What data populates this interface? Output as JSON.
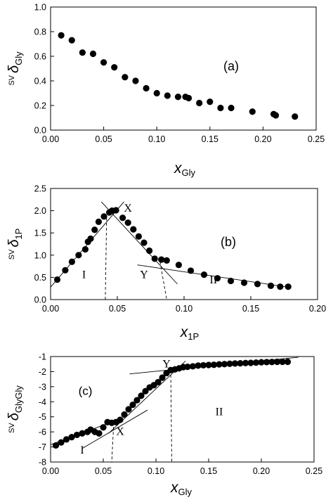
{
  "chart_data": [
    {
      "type": "scatter",
      "panel_label": "(a)",
      "ylabel": {
        "prefix": "SV",
        "symbol": "δ",
        "sub": "Gly"
      },
      "xlabel": {
        "symbol": "x",
        "sub": "Gly"
      },
      "xlim": [
        0,
        0.25
      ],
      "ylim": [
        0,
        1.0
      ],
      "xticks": [
        0.0,
        0.05,
        0.1,
        0.15,
        0.2,
        0.25
      ],
      "xtick_labels": [
        "0.00",
        "0.05",
        "0.10",
        "0.15",
        "0.20",
        "0.25"
      ],
      "yticks": [
        0,
        0.2,
        0.4,
        0.6,
        0.8,
        1.0
      ],
      "ytick_labels": [
        "0.0",
        "0.2",
        "0.4",
        "0.6",
        "0.8",
        "1.0"
      ],
      "grid": false,
      "points": [
        [
          0.01,
          0.77
        ],
        [
          0.02,
          0.73
        ],
        [
          0.03,
          0.63
        ],
        [
          0.04,
          0.62
        ],
        [
          0.05,
          0.55
        ],
        [
          0.06,
          0.51
        ],
        [
          0.07,
          0.43
        ],
        [
          0.08,
          0.4
        ],
        [
          0.09,
          0.34
        ],
        [
          0.1,
          0.3
        ],
        [
          0.11,
          0.28
        ],
        [
          0.12,
          0.27
        ],
        [
          0.127,
          0.27
        ],
        [
          0.13,
          0.26
        ],
        [
          0.14,
          0.22
        ],
        [
          0.15,
          0.23
        ],
        [
          0.16,
          0.18
        ],
        [
          0.17,
          0.18
        ],
        [
          0.19,
          0.15
        ],
        [
          0.21,
          0.13
        ],
        [
          0.212,
          0.12
        ],
        [
          0.23,
          0.11
        ]
      ]
    },
    {
      "type": "scatter",
      "panel_label": "(b)",
      "ylabel": {
        "prefix": "SV",
        "symbol": "δ",
        "sub": "1P"
      },
      "xlabel": {
        "symbol": "x",
        "sub": "1P"
      },
      "xlim": [
        0,
        0.2
      ],
      "ylim": [
        0,
        2.5
      ],
      "xticks": [
        0.0,
        0.05,
        0.1,
        0.15,
        0.2
      ],
      "xtick_labels": [
        "0.00",
        "0.05",
        "0.10",
        "0.15",
        "0.20"
      ],
      "yticks": [
        0,
        0.5,
        1.0,
        1.5,
        2.0,
        2.5
      ],
      "ytick_labels": [
        "0.0",
        "0.5",
        "1.0",
        "1.5",
        "2.0",
        "2.5"
      ],
      "grid": false,
      "points": [
        [
          0.005,
          0.45
        ],
        [
          0.011,
          0.66
        ],
        [
          0.016,
          0.85
        ],
        [
          0.021,
          1.0
        ],
        [
          0.026,
          1.13
        ],
        [
          0.028,
          1.3
        ],
        [
          0.03,
          1.37
        ],
        [
          0.033,
          1.57
        ],
        [
          0.036,
          1.75
        ],
        [
          0.04,
          1.87
        ],
        [
          0.044,
          1.96
        ],
        [
          0.046,
          2.0
        ],
        [
          0.049,
          2.01
        ],
        [
          0.054,
          1.84
        ],
        [
          0.058,
          1.73
        ],
        [
          0.062,
          1.58
        ],
        [
          0.066,
          1.42
        ],
        [
          0.07,
          1.28
        ],
        [
          0.074,
          1.1
        ],
        [
          0.078,
          0.92
        ],
        [
          0.083,
          0.9
        ],
        [
          0.087,
          0.88
        ],
        [
          0.096,
          0.78
        ],
        [
          0.105,
          0.65
        ],
        [
          0.115,
          0.56
        ],
        [
          0.125,
          0.48
        ],
        [
          0.135,
          0.42
        ],
        [
          0.145,
          0.38
        ],
        [
          0.155,
          0.35
        ],
        [
          0.165,
          0.31
        ],
        [
          0.172,
          0.29
        ],
        [
          0.178,
          0.29
        ]
      ],
      "fit_lines": [
        {
          "x": [
            0.0,
            0.055
          ],
          "y": [
            0.28,
            2.2
          ]
        },
        {
          "x": [
            0.038,
            0.095
          ],
          "y": [
            2.2,
            0.35
          ]
        },
        {
          "x": [
            0.065,
            0.18
          ],
          "y": [
            0.78,
            0.27
          ]
        }
      ],
      "guide_lines": [
        {
          "x": [
            0.041,
            0.042
          ],
          "y": [
            0.0,
            1.9
          ]
        },
        {
          "x": [
            0.082,
            0.087
          ],
          "y": [
            0.85,
            0.0
          ]
        }
      ],
      "annotations": [
        {
          "text": "X",
          "x": 0.058,
          "y": 1.98
        },
        {
          "text": "Y",
          "x": 0.07,
          "y": 0.48
        },
        {
          "text": "I",
          "x": 0.025,
          "y": 0.48
        },
        {
          "text": "II",
          "x": 0.122,
          "y": 0.36
        }
      ]
    },
    {
      "type": "scatter",
      "panel_label": "(c)",
      "ylabel": {
        "prefix": "SV",
        "symbol": "δ",
        "sub": "GlyGly"
      },
      "xlabel": {
        "symbol": "x",
        "sub": "Gly"
      },
      "xlim": [
        0,
        0.25
      ],
      "ylim": [
        -8,
        -1
      ],
      "xticks": [
        0.0,
        0.05,
        0.1,
        0.15,
        0.2,
        0.25
      ],
      "xtick_labels": [
        "0.00",
        "0.05",
        "0.10",
        "0.15",
        "0.20",
        "0.25"
      ],
      "yticks": [
        -8,
        -7,
        -6,
        -5,
        -4,
        -3,
        -2,
        -1
      ],
      "ytick_labels": [
        "-8",
        "-7",
        "-6",
        "-5",
        "-4",
        "-3",
        "-2",
        "-1"
      ],
      "grid": false,
      "points": [
        [
          0.005,
          -6.9
        ],
        [
          0.01,
          -6.7
        ],
        [
          0.015,
          -6.5
        ],
        [
          0.02,
          -6.35
        ],
        [
          0.025,
          -6.2
        ],
        [
          0.03,
          -6.1
        ],
        [
          0.035,
          -6.0
        ],
        [
          0.038,
          -5.85
        ],
        [
          0.042,
          -6.0
        ],
        [
          0.046,
          -6.1
        ],
        [
          0.05,
          -5.7
        ],
        [
          0.054,
          -5.35
        ],
        [
          0.058,
          -5.4
        ],
        [
          0.062,
          -5.35
        ],
        [
          0.066,
          -5.2
        ],
        [
          0.07,
          -4.85
        ],
        [
          0.074,
          -4.5
        ],
        [
          0.078,
          -4.2
        ],
        [
          0.082,
          -3.9
        ],
        [
          0.086,
          -3.6
        ],
        [
          0.09,
          -3.3
        ],
        [
          0.094,
          -3.05
        ],
        [
          0.098,
          -2.9
        ],
        [
          0.102,
          -2.7
        ],
        [
          0.106,
          -2.4
        ],
        [
          0.11,
          -2.1
        ],
        [
          0.114,
          -1.9
        ],
        [
          0.118,
          -1.85
        ],
        [
          0.122,
          -1.78
        ],
        [
          0.126,
          -1.7
        ],
        [
          0.13,
          -1.68
        ],
        [
          0.135,
          -1.65
        ],
        [
          0.14,
          -1.6
        ],
        [
          0.145,
          -1.58
        ],
        [
          0.15,
          -1.56
        ],
        [
          0.155,
          -1.55
        ],
        [
          0.16,
          -1.52
        ],
        [
          0.165,
          -1.5
        ],
        [
          0.17,
          -1.48
        ],
        [
          0.175,
          -1.46
        ],
        [
          0.18,
          -1.45
        ],
        [
          0.185,
          -1.43
        ],
        [
          0.19,
          -1.42
        ],
        [
          0.195,
          -1.4
        ],
        [
          0.2,
          -1.38
        ],
        [
          0.205,
          -1.37
        ],
        [
          0.21,
          -1.36
        ],
        [
          0.215,
          -1.35
        ],
        [
          0.22,
          -1.35
        ],
        [
          0.225,
          -1.35
        ]
      ],
      "fit_lines": [
        {
          "x": [
            0.0,
            0.058
          ],
          "y": [
            -6.85,
            -5.35
          ]
        },
        {
          "x": [
            0.03,
            0.092
          ],
          "y": [
            -7.1,
            -4.55
          ]
        },
        {
          "x": [
            0.055,
            0.128
          ],
          "y": [
            -6.1,
            -1.3
          ]
        },
        {
          "x": [
            0.075,
            0.235
          ],
          "y": [
            -2.15,
            -1.05
          ]
        }
      ],
      "guide_lines": [
        {
          "x": [
            0.06,
            0.058
          ],
          "y": [
            -5.35,
            -8.0
          ]
        },
        {
          "x": [
            0.114,
            0.115
          ],
          "y": [
            -1.9,
            -8.0
          ]
        }
      ],
      "annotations": [
        {
          "text": "X",
          "x": 0.066,
          "y": -6.2
        },
        {
          "text": "Y",
          "x": 0.11,
          "y": -1.72
        },
        {
          "text": "(c)",
          "x": 0.033,
          "y": -3.55
        },
        {
          "text": "I",
          "x": 0.03,
          "y": -7.45
        },
        {
          "text": "II",
          "x": 0.16,
          "y": -4.9
        }
      ]
    }
  ]
}
